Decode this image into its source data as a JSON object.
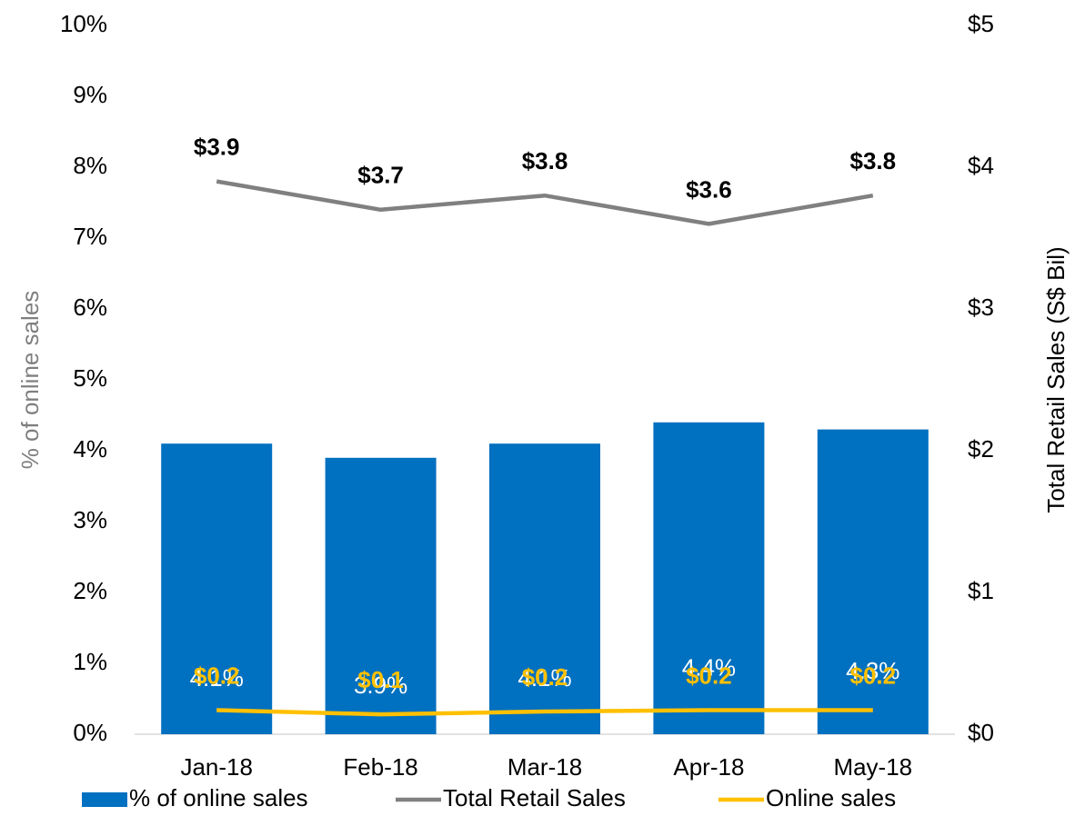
{
  "chart_data": {
    "type": "bar",
    "categories": [
      "Jan-18",
      "Feb-18",
      "Mar-18",
      "Apr-18",
      "May-18"
    ],
    "y_label": "% of online sales",
    "y2_label": "Total Retail Sales (S$ Bil)",
    "ylim": [
      0,
      10
    ],
    "yticks": [
      {
        "value": 0,
        "label": "0%"
      },
      {
        "value": 1,
        "label": "1%"
      },
      {
        "value": 2,
        "label": "2%"
      },
      {
        "value": 3,
        "label": "3%"
      },
      {
        "value": 4,
        "label": "4%"
      },
      {
        "value": 5,
        "label": "5%"
      },
      {
        "value": 6,
        "label": "6%"
      },
      {
        "value": 7,
        "label": "7%"
      },
      {
        "value": 8,
        "label": "8%"
      },
      {
        "value": 9,
        "label": "9%"
      },
      {
        "value": 10,
        "label": "10%"
      }
    ],
    "y2lim": [
      0,
      5
    ],
    "y2ticks": [
      {
        "value": 0,
        "label": "$0"
      },
      {
        "value": 1,
        "label": "$1"
      },
      {
        "value": 2,
        "label": "$2"
      },
      {
        "value": 3,
        "label": "$3"
      },
      {
        "value": 4,
        "label": "$4"
      },
      {
        "value": 5,
        "label": "$5"
      }
    ],
    "grid": false,
    "legend": "bottom",
    "series": [
      {
        "name": "% of online sales",
        "type": "bar",
        "axis": "y",
        "color": "#0070c0",
        "values": [
          4.1,
          3.9,
          4.1,
          4.4,
          4.3
        ],
        "value_labels": [
          "4.1%",
          "3.9%",
          "4.1%",
          "4.4%",
          "4.3%"
        ]
      },
      {
        "name": "Total Retail Sales",
        "type": "line",
        "axis": "y2",
        "color": "#808080",
        "values": [
          3.9,
          3.7,
          3.8,
          3.6,
          3.8
        ],
        "value_labels": [
          "$3.9",
          "$3.7",
          "$3.8",
          "$3.6",
          "$3.8"
        ]
      },
      {
        "name": "Online sales",
        "type": "line",
        "axis": "y2",
        "color": "#ffc000",
        "values": [
          0.17,
          0.14,
          0.16,
          0.17,
          0.17
        ],
        "value_labels": [
          "$0.2",
          "$0.1",
          "$0.2",
          "$0.2",
          "$0.2"
        ]
      }
    ]
  }
}
